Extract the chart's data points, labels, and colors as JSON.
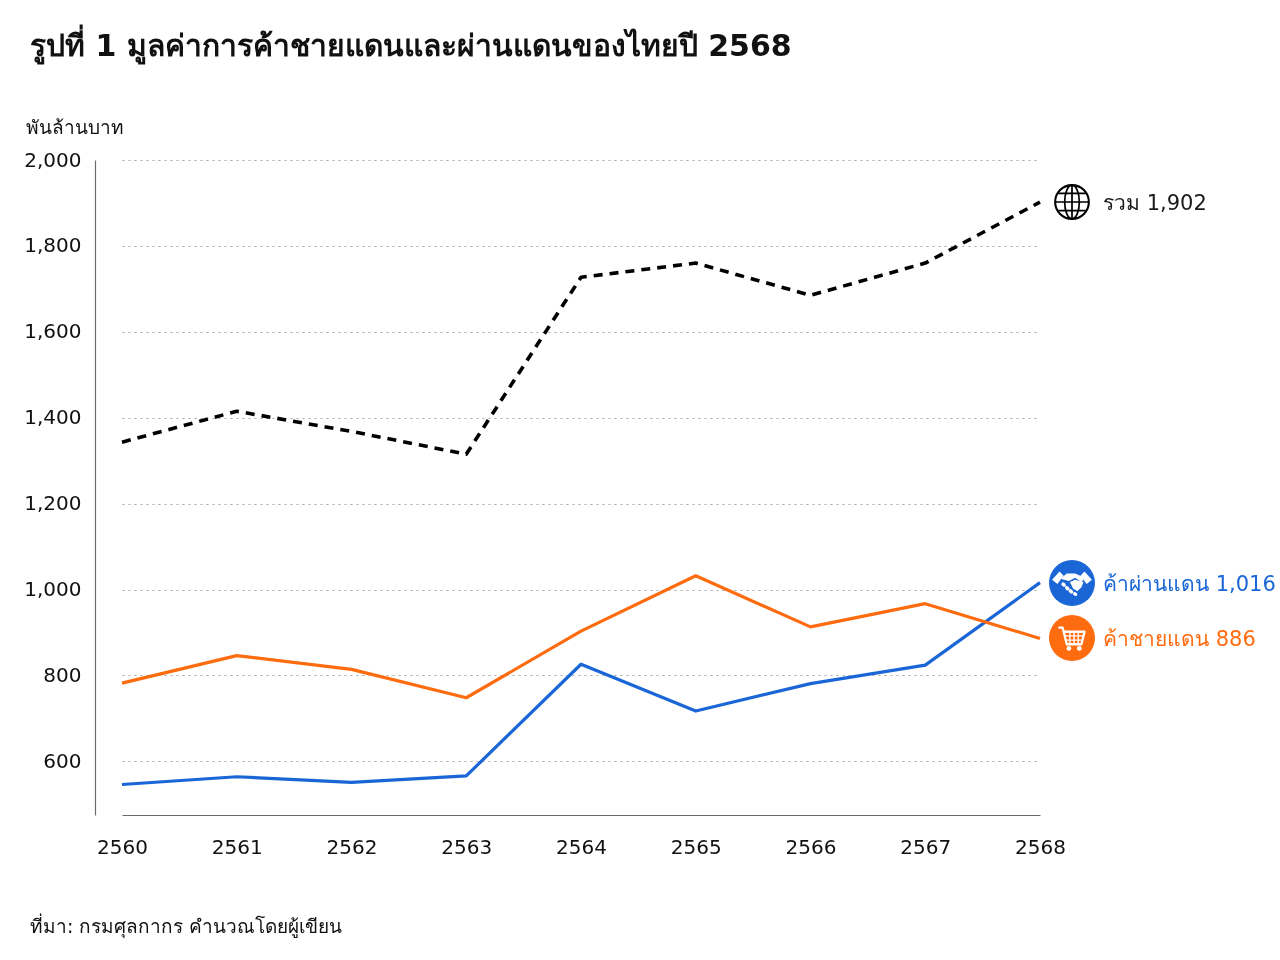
{
  "chart_data": {
    "type": "line",
    "title": "รูปที่ 1 มูลค่าการค้าชายแดนและผ่านแดนของไทยปี 2568",
    "ylabel": "พันล้านบาท",
    "categories": [
      "2560",
      "2561",
      "2562",
      "2563",
      "2564",
      "2565",
      "2566",
      "2567",
      "2568"
    ],
    "series": [
      {
        "name": "รวม",
        "color": "#000000",
        "line_style": "dashed",
        "values": [
          1343,
          1415,
          1368,
          1315,
          1727,
          1760,
          1685,
          1760,
          1902
        ],
        "value_labels": [
          null,
          null,
          null,
          null,
          null,
          null,
          null,
          null,
          "1,902"
        ]
      },
      {
        "name": "ค้าผ่านแดน",
        "color": "#1a66d6",
        "line_style": "solid",
        "values": [
          546,
          564,
          551,
          566,
          826,
          717,
          781,
          824,
          1016
        ],
        "value_labels": [
          null,
          null,
          null,
          null,
          null,
          null,
          null,
          null,
          "1,016"
        ]
      },
      {
        "name": "ค้าชายแดน",
        "color": "#ff6b0f",
        "line_style": "solid",
        "values": [
          782,
          846,
          814,
          748,
          903,
          1032,
          913,
          967,
          886
        ],
        "value_labels": [
          null,
          null,
          null,
          null,
          null,
          null,
          null,
          null,
          "886"
        ]
      }
    ],
    "ylim": [
      475,
      2000
    ],
    "yticks": [
      600,
      800,
      {
        "value": 1000,
        "label": "1,000"
      },
      {
        "value": 1200,
        "label": "1,200"
      },
      {
        "value": 1400,
        "label": "1,400"
      },
      {
        "value": 1600,
        "label": "1,600"
      },
      {
        "value": 1800,
        "label": "1,800"
      },
      {
        "value": 2000,
        "label": "2,000"
      }
    ],
    "grid": "y",
    "annotations": [
      "ที่มา: กรมศุลกากร คำนวณโดยผู้เขียน"
    ]
  }
}
